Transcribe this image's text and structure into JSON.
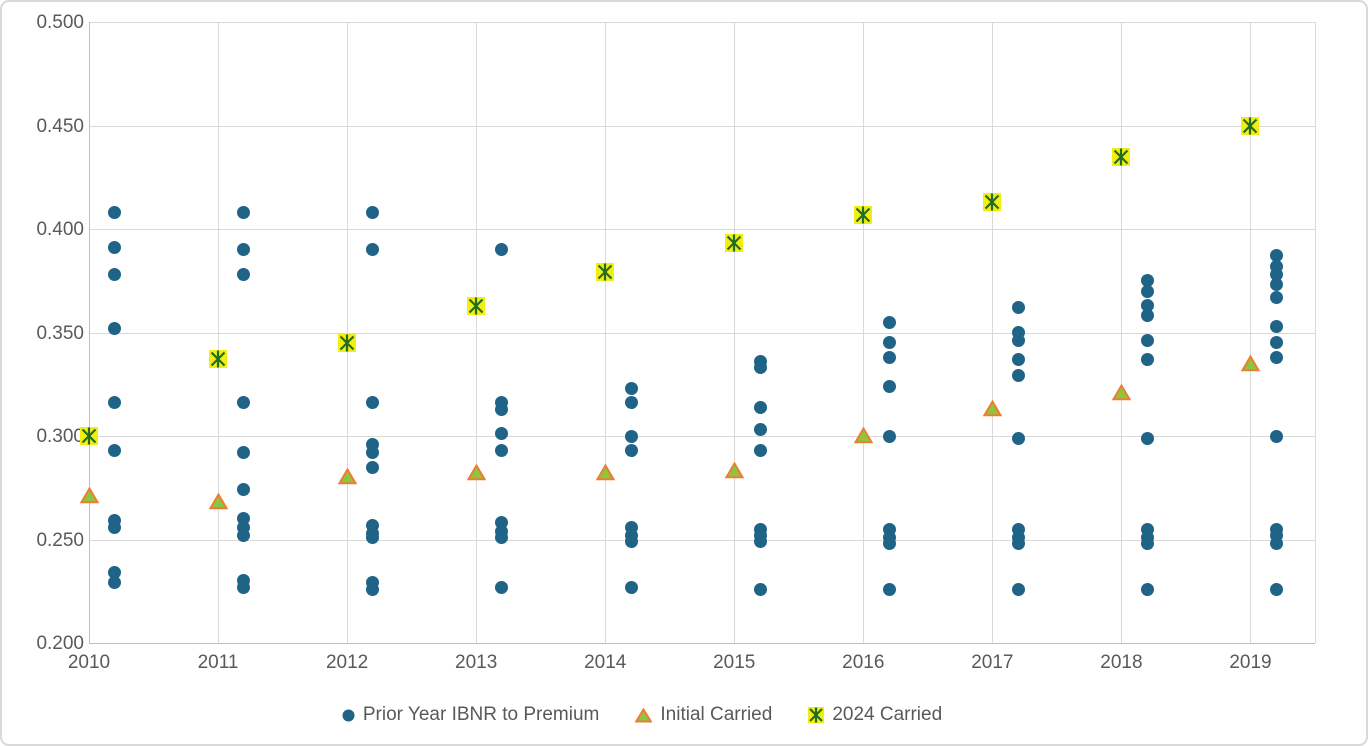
{
  "chart_data": {
    "type": "scatter",
    "title": "",
    "grid": true,
    "legend_position": "bottom",
    "x_axis": {
      "min": 2010,
      "max": 2019.5,
      "ticks": [
        {
          "label": "2010",
          "value": 2010
        },
        {
          "label": "2011",
          "value": 2011
        },
        {
          "label": "2012",
          "value": 2012
        },
        {
          "label": "2013",
          "value": 2013
        },
        {
          "label": "2014",
          "value": 2014
        },
        {
          "label": "2015",
          "value": 2015
        },
        {
          "label": "2016",
          "value": 2016
        },
        {
          "label": "2017",
          "value": 2017
        },
        {
          "label": "2018",
          "value": 2018
        },
        {
          "label": "2019",
          "value": 2019
        }
      ]
    },
    "y_axis": {
      "min": 0.2,
      "max": 0.5,
      "ticks": [
        {
          "label": "0.500",
          "value": 0.5
        },
        {
          "label": "0.450",
          "value": 0.45
        },
        {
          "label": "0.400",
          "value": 0.4
        },
        {
          "label": "0.350",
          "value": 0.35
        },
        {
          "label": "0.300",
          "value": 0.3
        },
        {
          "label": "0.250",
          "value": 0.25
        },
        {
          "label": "0.200",
          "value": 0.2
        }
      ]
    },
    "series": [
      {
        "name": "Prior Year IBNR to Premium",
        "marker": "circle",
        "color": "#1F6387",
        "x_offset": 0.2,
        "points_by_year": {
          "2010": [
            0.408,
            0.391,
            0.378,
            0.352,
            0.316,
            0.293,
            0.259,
            0.256,
            0.234,
            0.229
          ],
          "2011": [
            0.408,
            0.39,
            0.378,
            0.316,
            0.292,
            0.274,
            0.26,
            0.256,
            0.252,
            0.23,
            0.227
          ],
          "2012": [
            0.408,
            0.39,
            0.316,
            0.296,
            0.292,
            0.285,
            0.257,
            0.253,
            0.251,
            0.229,
            0.226
          ],
          "2013": [
            0.39,
            0.316,
            0.313,
            0.301,
            0.293,
            0.258,
            0.254,
            0.251,
            0.227
          ],
          "2014": [
            0.323,
            0.316,
            0.3,
            0.293,
            0.256,
            0.252,
            0.249,
            0.227
          ],
          "2015": [
            0.336,
            0.333,
            0.314,
            0.303,
            0.293,
            0.255,
            0.252,
            0.249,
            0.226
          ],
          "2016": [
            0.355,
            0.345,
            0.338,
            0.324,
            0.3,
            0.255,
            0.251,
            0.248,
            0.226
          ],
          "2017": [
            0.362,
            0.35,
            0.346,
            0.337,
            0.329,
            0.299,
            0.255,
            0.251,
            0.248,
            0.226
          ],
          "2018": [
            0.375,
            0.37,
            0.363,
            0.358,
            0.346,
            0.337,
            0.299,
            0.255,
            0.251,
            0.248,
            0.226
          ],
          "2019": [
            0.387,
            0.382,
            0.378,
            0.373,
            0.367,
            0.353,
            0.345,
            0.338,
            0.3,
            0.255,
            0.252,
            0.248,
            0.226
          ]
        }
      },
      {
        "name": "Initial Carried",
        "marker": "triangle",
        "fill": "#8CC63F",
        "stroke": "#ED7D31",
        "x_offset": 0,
        "points_by_year": {
          "2010": [
            0.271
          ],
          "2011": [
            0.268
          ],
          "2012": [
            0.28
          ],
          "2013": [
            0.282
          ],
          "2014": [
            0.282
          ],
          "2015": [
            0.283
          ],
          "2016": [
            0.3
          ],
          "2017": [
            0.313
          ],
          "2018": [
            0.321
          ],
          "2019": [
            0.335
          ]
        }
      },
      {
        "name": "2024 Carried",
        "marker": "asterisk",
        "fill": "#F2EE0F",
        "stroke": "#226B22",
        "x_offset": 0,
        "points_by_year": {
          "2010": [
            0.3
          ],
          "2011": [
            0.337
          ],
          "2012": [
            0.345
          ],
          "2013": [
            0.363
          ],
          "2014": [
            0.379
          ],
          "2015": [
            0.393
          ],
          "2016": [
            0.407
          ],
          "2017": [
            0.413
          ],
          "2018": [
            0.435
          ],
          "2019": [
            0.45
          ]
        }
      }
    ]
  },
  "colors": {
    "tick_label": "#595959",
    "gridline": "#D9D9D9",
    "axis_line": "#BFBFBF",
    "frame_border": "#D9D9D9",
    "background": "#FFFFFF"
  }
}
